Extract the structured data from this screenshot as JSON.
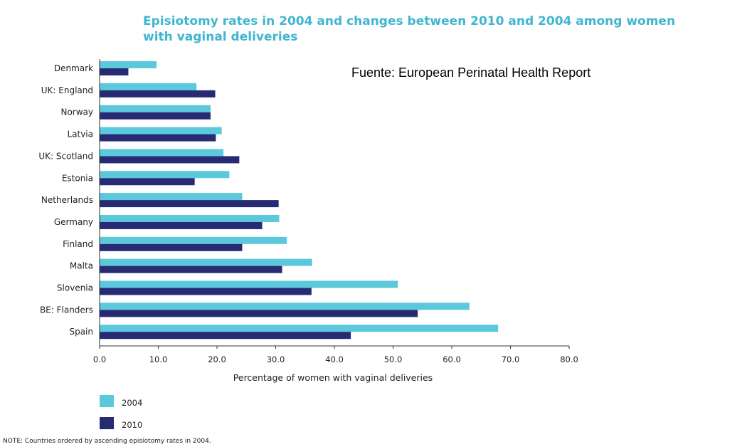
{
  "chart_data": {
    "type": "bar",
    "orientation": "horizontal",
    "title_line1": "Episiotomy rates in 2004 and changes between 2010 and 2004 among women",
    "title_line2": "with vaginal deliveries",
    "source": "Fuente: European Perinatal Health Report",
    "xlabel": "Percentage of women with vaginal deliveries",
    "xlim": [
      0,
      80
    ],
    "xticks": [
      "0.0",
      "10.0",
      "20.0",
      "30.0",
      "40.0",
      "50.0",
      "60.0",
      "70.0",
      "80.0"
    ],
    "categories": [
      "Denmark",
      "UK: England",
      "Norway",
      "Latvia",
      "UK: Scotland",
      "Estonia",
      "Netherlands",
      "Germany",
      "Finland",
      "Malta",
      "Slovenia",
      "BE: Flanders",
      "Spain"
    ],
    "series": [
      {
        "name": "2004",
        "color": "#5bc8dc",
        "values": [
          9.7,
          16.5,
          18.9,
          20.8,
          21.1,
          22.1,
          24.3,
          30.6,
          31.9,
          36.2,
          50.8,
          63.0,
          67.9
        ]
      },
      {
        "name": "2010",
        "color": "#262b74",
        "values": [
          4.9,
          19.7,
          18.9,
          19.8,
          23.8,
          16.2,
          30.5,
          27.7,
          24.3,
          31.1,
          36.1,
          54.2,
          42.8
        ]
      }
    ],
    "legend_position": "bottom-left",
    "grid": false,
    "note": "NOTE: Countries ordered by ascending episiotomy rates in 2004."
  }
}
